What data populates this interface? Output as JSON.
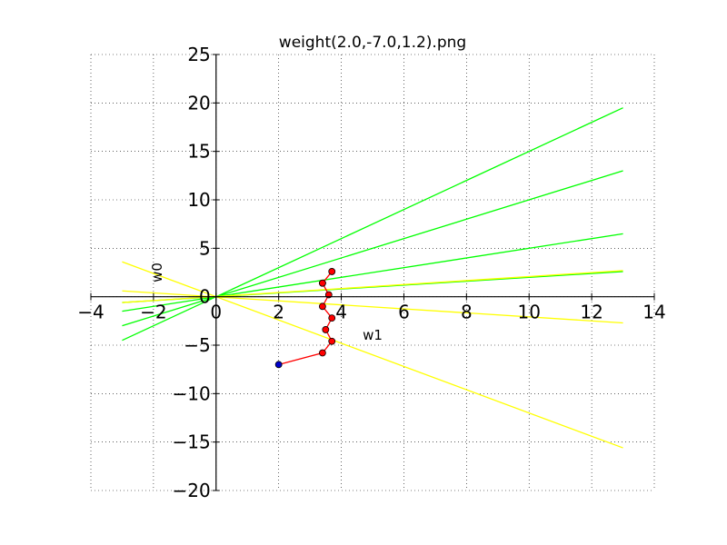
{
  "chart_data": {
    "type": "line",
    "title": "weight(2.0,-7.0,1.2).png",
    "xlabel": "w1",
    "ylabel": "w0",
    "xlim": [
      -4,
      14
    ],
    "ylim": [
      -20,
      25
    ],
    "x_ticks": [
      -4,
      -2,
      0,
      2,
      4,
      6,
      8,
      10,
      12,
      14
    ],
    "y_ticks": [
      -20,
      -15,
      -10,
      -5,
      0,
      5,
      10,
      15,
      20,
      25
    ],
    "grid": true,
    "colors": {
      "green_lines": "#00ff00",
      "yellow_lines": "#ffff00",
      "path": "#ff0000",
      "start_point": "#0000cc",
      "path_points": "#ff0000"
    },
    "green_lines": [
      {
        "x": [
          -3,
          13
        ],
        "y": [
          -4.5,
          19.5
        ]
      },
      {
        "x": [
          -3,
          13
        ],
        "y": [
          -3.0,
          13.0
        ]
      },
      {
        "x": [
          -3,
          13
        ],
        "y": [
          -1.5,
          6.5
        ]
      },
      {
        "x": [
          -3,
          13
        ],
        "y": [
          -0.6,
          2.6
        ]
      }
    ],
    "yellow_lines": [
      {
        "x": [
          -3,
          13
        ],
        "y": [
          -0.6,
          2.7
        ]
      },
      {
        "x": [
          -3,
          13
        ],
        "y": [
          0.6,
          -2.7
        ]
      },
      {
        "x": [
          -3,
          13
        ],
        "y": [
          3.6,
          -15.6
        ]
      }
    ],
    "path": {
      "x": [
        2.0,
        3.4,
        3.7,
        3.5,
        3.7,
        3.4,
        3.6,
        3.4,
        3.7,
        3.4
      ],
      "y": [
        -7.0,
        -5.8,
        -4.6,
        -3.4,
        -2.2,
        -1.0,
        0.2,
        1.4,
        2.6,
        1.4
      ]
    }
  }
}
